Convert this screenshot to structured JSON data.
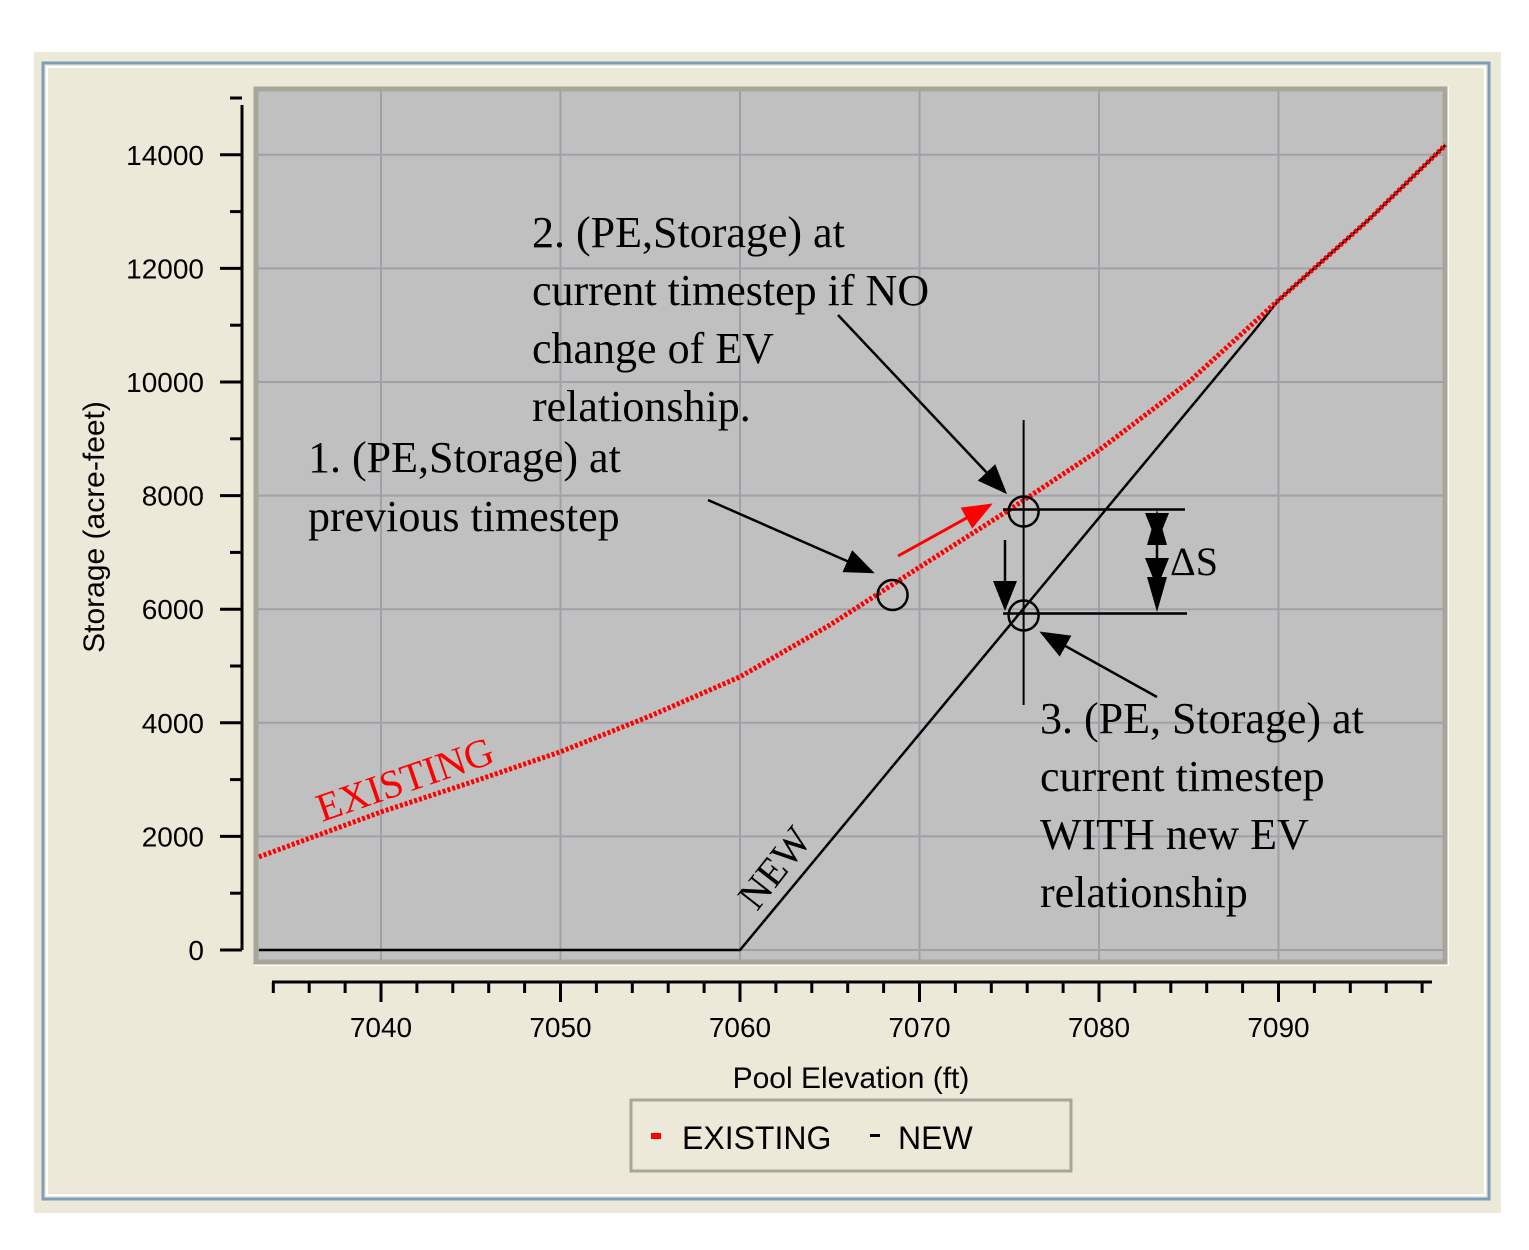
{
  "chart_data": {
    "type": "line",
    "title": "",
    "xlabel": "Pool Elevation (ft)",
    "ylabel": "Storage (acre-feet)",
    "xlim": [
      7033.2,
      7099.3
    ],
    "ylim": [
      -210,
      15140
    ],
    "x_ticks": [
      7040,
      7050,
      7060,
      7070,
      7080,
      7090
    ],
    "y_ticks": [
      0,
      2000,
      4000,
      6000,
      8000,
      10000,
      12000,
      14000
    ],
    "grid": true,
    "legend": {
      "placement": "bottom-center",
      "entries": [
        "EXISTING",
        "NEW"
      ]
    },
    "series": [
      {
        "name": "EXISTING",
        "color": "#ff0000",
        "style": "dotted",
        "x": [
          7033.2,
          7040,
          7045,
          7050,
          7055,
          7060,
          7065,
          7070,
          7075,
          7080,
          7085,
          7090,
          7095,
          7099.3
        ],
        "y": [
          1640,
          2430,
          2950,
          3490,
          4120,
          4810,
          5720,
          6740,
          7750,
          8800,
          10000,
          11440,
          12850,
          14170
        ]
      },
      {
        "name": "NEW",
        "color": "#000000",
        "style": "solid",
        "x": [
          7033.2,
          7060,
          7088.7,
          7090,
          7095,
          7099.3
        ],
        "y": [
          0,
          0,
          10920,
          11440,
          12850,
          14170
        ]
      }
    ],
    "annotations": {
      "existing_label": "EXISTING",
      "new_label": "NEW",
      "note1": [
        "1. (PE,Storage) at",
        "previous timestep"
      ],
      "note2": [
        "2. (PE,Storage) at",
        "current timestep if NO",
        "change of EV",
        "relationship."
      ],
      "note3": [
        "3. (PE, Storage) at",
        "current timestep",
        "WITH new EV",
        "relationship"
      ],
      "delta": "ΔS",
      "points": [
        {
          "name": "previous",
          "x": 7068.5,
          "y": 6250
        },
        {
          "name": "no-change",
          "x": 7075.8,
          "y": 7720
        },
        {
          "name": "new-ev",
          "x": 7075.8,
          "y": 5890
        }
      ]
    }
  }
}
